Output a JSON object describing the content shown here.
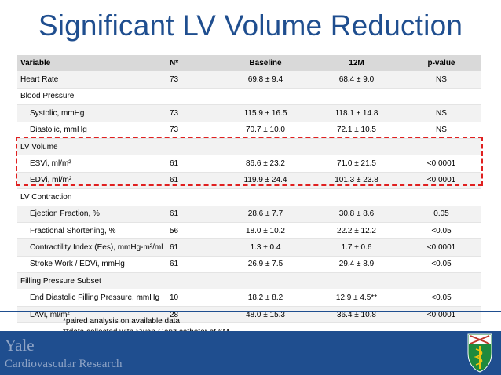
{
  "title": "Significant LV Volume Reduction",
  "table": {
    "headers": [
      "Variable",
      "N*",
      "Baseline",
      "12M",
      "p-value"
    ],
    "rows": [
      {
        "variable": "Heart Rate",
        "n": "73",
        "baseline": "69.8 ± 9.4",
        "m12": "68.4 ± 9.0",
        "p": "NS"
      },
      {
        "variable": "Blood Pressure",
        "n": "",
        "baseline": "",
        "m12": "",
        "p": ""
      },
      {
        "variable": "Systolic, mmHg",
        "n": "73",
        "baseline": "115.9 ± 16.5",
        "m12": "118.1 ± 14.8",
        "p": "NS"
      },
      {
        "variable": "Diastolic, mmHg",
        "n": "73",
        "baseline": "70.7 ± 10.0",
        "m12": "72.1 ± 10.5",
        "p": "NS"
      },
      {
        "variable": "LV Volume",
        "n": "",
        "baseline": "",
        "m12": "",
        "p": ""
      },
      {
        "variable": "ESVi, ml/m²",
        "n": "61",
        "baseline": "86.6 ± 23.2",
        "m12": "71.0 ± 21.5",
        "p": "<0.0001"
      },
      {
        "variable": "EDVi, ml/m²",
        "n": "61",
        "baseline": "119.9 ± 24.4",
        "m12": "101.3 ± 23.8",
        "p": "<0.0001"
      },
      {
        "variable": "LV Contraction",
        "n": "",
        "baseline": "",
        "m12": "",
        "p": ""
      },
      {
        "variable": "Ejection Fraction, %",
        "n": "61",
        "baseline": "28.6 ± 7.7",
        "m12": "30.8 ± 8.6",
        "p": "0.05"
      },
      {
        "variable": "Fractional Shortening, %",
        "n": "56",
        "baseline": "18.0 ± 10.2",
        "m12": "22.2 ± 12.2",
        "p": "<0.05"
      },
      {
        "variable": "Contractility Index (Ees), mmHg-m²/ml",
        "n": "61",
        "baseline": "1.3 ± 0.4",
        "m12": "1.7 ± 0.6",
        "p": "<0.0001"
      },
      {
        "variable": "Stroke Work / EDVi, mmHg",
        "n": "61",
        "baseline": "26.9 ± 7.5",
        "m12": "29.4 ± 8.9",
        "p": "<0.05"
      },
      {
        "variable": "Filling Pressure Subset",
        "n": "",
        "baseline": "",
        "m12": "",
        "p": ""
      },
      {
        "variable": "End Diastolic Filling Pressure, mmHg",
        "n": "10",
        "baseline": "18.2 ± 8.2",
        "m12": "12.9 ± 4.5**",
        "p": "<0.05"
      },
      {
        "variable": "LAVi, ml/m²",
        "n": "28",
        "baseline": "48.0 ± 15.3",
        "m12": "36.4 ± 10.8",
        "p": "<0.0001"
      }
    ]
  },
  "footnotes": [
    "*paired analysis on available data",
    "**data collected with Swan-Ganz catheter at 6M"
  ],
  "footer": {
    "line1": "Yale",
    "line2": "Cardiovascular Research"
  },
  "colors": {
    "title": "#1f4e8f",
    "footer_bg": "#1f4e8f",
    "highlight": "#e02020"
  }
}
